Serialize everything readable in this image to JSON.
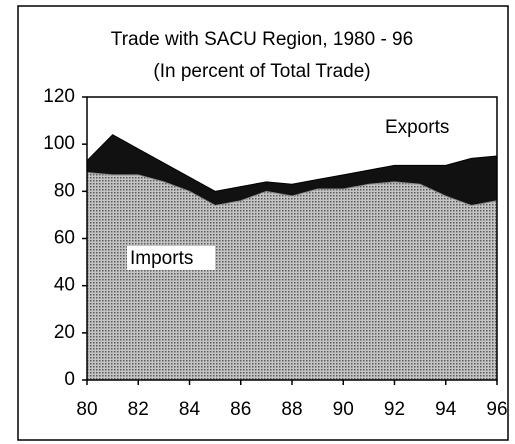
{
  "chart_data": {
    "type": "area",
    "title": "Trade with SACU Region, 1980 - 96",
    "subtitle": "(In percent of Total Trade)",
    "x": [
      1980,
      1981,
      1982,
      1983,
      1984,
      1985,
      1986,
      1987,
      1988,
      1989,
      1990,
      1991,
      1992,
      1993,
      1994,
      1995,
      1996
    ],
    "series": [
      {
        "name": "Exports",
        "color": "#111111",
        "values": [
          93,
          104,
          98,
          92,
          86,
          80,
          82,
          84,
          83,
          85,
          87,
          89,
          91,
          91,
          91,
          94,
          95
        ]
      },
      {
        "name": "Imports",
        "color": "#9a9a9a",
        "values": [
          88,
          87,
          87,
          84,
          80,
          74,
          76,
          80,
          78,
          81,
          81,
          83,
          84,
          83,
          78,
          74,
          76
        ]
      }
    ],
    "xlim": [
      1980,
      1996
    ],
    "xticks": [
      {
        "value": 1980,
        "label": "80"
      },
      {
        "value": 1982,
        "label": "82"
      },
      {
        "value": 1984,
        "label": "84"
      },
      {
        "value": 1986,
        "label": "86"
      },
      {
        "value": 1988,
        "label": "88"
      },
      {
        "value": 1990,
        "label": "90"
      },
      {
        "value": 1992,
        "label": "92"
      },
      {
        "value": 1994,
        "label": "94"
      },
      {
        "value": 1996,
        "label": "96"
      }
    ],
    "ylim": [
      0,
      120
    ],
    "yticks": [
      0,
      20,
      40,
      60,
      80,
      100,
      120
    ]
  }
}
